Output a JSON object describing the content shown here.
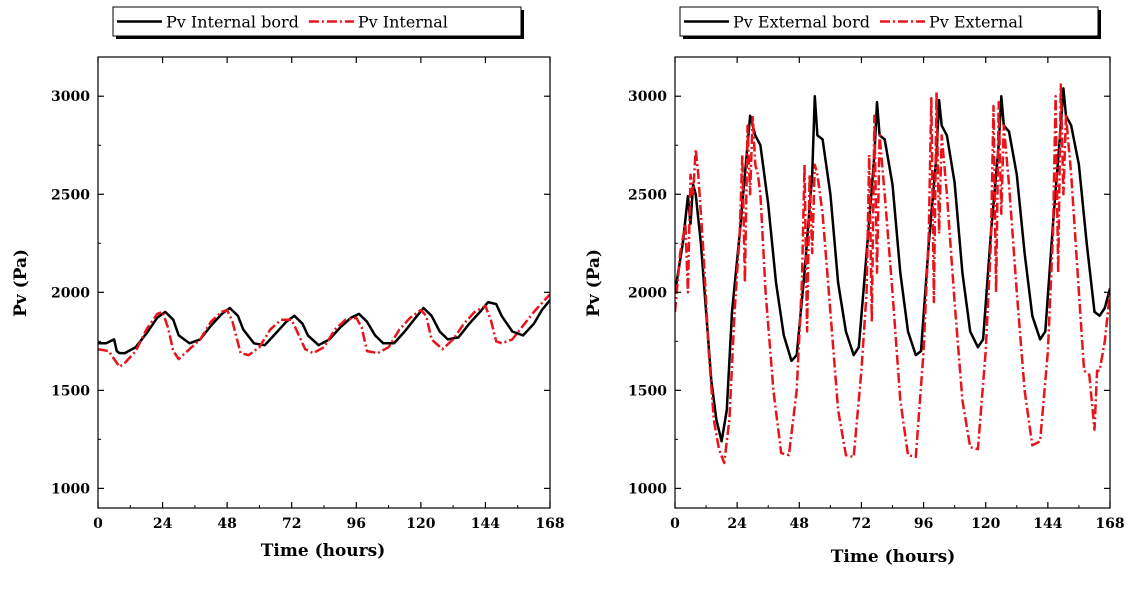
{
  "chart_data": [
    {
      "type": "line",
      "title": "",
      "xlabel": "Time (hours)",
      "ylabel": "Pv (Pa)",
      "xlim": [
        0,
        168
      ],
      "ylim": [
        900,
        3200
      ],
      "xticks": [
        "0",
        "24",
        "48",
        "72",
        "96",
        "120",
        "144",
        "168"
      ],
      "yticks": [
        "1000",
        "1500",
        "2000",
        "2500",
        "3000"
      ],
      "legend_position": "top",
      "series": [
        {
          "name": "Pv Internal bord",
          "color": "#000000",
          "style": "solid",
          "x": [
            0,
            3,
            6,
            7,
            8,
            10,
            14,
            18,
            22,
            25,
            28,
            30,
            34,
            38,
            42,
            46,
            49,
            52,
            54,
            58,
            62,
            66,
            70,
            73,
            76,
            78,
            82,
            86,
            90,
            94,
            97,
            100,
            103,
            106,
            110,
            114,
            118,
            121,
            124,
            127,
            130,
            134,
            138,
            142,
            145,
            148,
            150,
            154,
            158,
            162,
            165,
            168
          ],
          "y": [
            1740,
            1740,
            1760,
            1700,
            1690,
            1690,
            1720,
            1790,
            1870,
            1900,
            1860,
            1780,
            1740,
            1760,
            1830,
            1890,
            1920,
            1880,
            1810,
            1740,
            1730,
            1790,
            1850,
            1880,
            1840,
            1780,
            1730,
            1760,
            1820,
            1870,
            1890,
            1850,
            1780,
            1740,
            1740,
            1800,
            1870,
            1920,
            1880,
            1800,
            1760,
            1770,
            1840,
            1900,
            1950,
            1940,
            1880,
            1800,
            1780,
            1840,
            1910,
            1960
          ]
        },
        {
          "name": "Pv Internal",
          "color": "#e8141b",
          "style": "dashdot",
          "x": [
            0,
            4,
            6,
            8,
            10,
            14,
            18,
            22,
            24,
            26,
            28,
            30,
            34,
            38,
            42,
            46,
            48,
            50,
            53,
            56,
            60,
            64,
            68,
            72,
            74,
            77,
            80,
            84,
            88,
            92,
            96,
            98,
            100,
            104,
            108,
            112,
            116,
            120,
            122,
            124,
            128,
            132,
            136,
            140,
            144,
            146,
            148,
            150,
            154,
            158,
            162,
            166,
            168
          ],
          "y": [
            1710,
            1700,
            1660,
            1620,
            1640,
            1700,
            1810,
            1890,
            1900,
            1820,
            1700,
            1660,
            1710,
            1760,
            1850,
            1900,
            1910,
            1850,
            1690,
            1680,
            1720,
            1810,
            1860,
            1860,
            1800,
            1710,
            1690,
            1720,
            1810,
            1860,
            1870,
            1820,
            1700,
            1690,
            1720,
            1810,
            1870,
            1910,
            1880,
            1760,
            1710,
            1760,
            1840,
            1900,
            1930,
            1860,
            1750,
            1740,
            1760,
            1830,
            1900,
            1960,
            1990
          ]
        }
      ]
    },
    {
      "type": "line",
      "title": "",
      "xlabel": "Time (hours)",
      "ylabel": "Pv (Pa)",
      "xlim": [
        0,
        168
      ],
      "ylim": [
        900,
        3200
      ],
      "xticks": [
        "0",
        "24",
        "48",
        "72",
        "96",
        "120",
        "144",
        "168"
      ],
      "yticks": [
        "1000",
        "1500",
        "2000",
        "2500",
        "3000"
      ],
      "legend_position": "top",
      "series": [
        {
          "name": "Pv External bord",
          "color": "#000000",
          "style": "solid",
          "x": [
            0,
            3,
            5,
            6,
            7,
            8,
            10,
            12,
            14,
            16,
            18,
            20,
            22,
            25,
            27,
            29,
            30,
            31,
            33,
            36,
            39,
            42,
            45,
            47,
            50,
            53,
            54,
            55,
            57,
            60,
            63,
            66,
            69,
            71,
            74,
            77,
            78,
            79,
            81,
            84,
            87,
            90,
            93,
            95,
            98,
            101,
            102,
            103,
            105,
            108,
            111,
            114,
            117,
            119,
            122,
            125,
            126,
            127,
            129,
            132,
            135,
            138,
            141,
            143,
            146,
            149,
            150,
            151,
            153,
            156,
            159,
            162,
            164,
            166,
            168
          ],
          "y": [
            2000,
            2250,
            2490,
            2350,
            2550,
            2500,
            2250,
            1900,
            1550,
            1350,
            1240,
            1400,
            1900,
            2300,
            2600,
            2900,
            2850,
            2800,
            2750,
            2450,
            2050,
            1780,
            1650,
            1680,
            2100,
            2600,
            3000,
            2800,
            2780,
            2500,
            2050,
            1800,
            1680,
            1720,
            2200,
            2700,
            2970,
            2800,
            2780,
            2550,
            2100,
            1800,
            1680,
            1700,
            2250,
            2700,
            2980,
            2850,
            2800,
            2560,
            2100,
            1800,
            1720,
            1760,
            2300,
            2750,
            3000,
            2850,
            2820,
            2600,
            2200,
            1880,
            1760,
            1800,
            2350,
            2850,
            3040,
            2900,
            2850,
            2650,
            2250,
            1900,
            1880,
            1920,
            2020
          ]
        },
        {
          "name": "Pv External",
          "color": "#e8141b",
          "style": "dashdot",
          "x": [
            0,
            2,
            4,
            5,
            6,
            7,
            8,
            9,
            11,
            13,
            15,
            17,
            19,
            21,
            23,
            25,
            26,
            27,
            28,
            29,
            30,
            31,
            32,
            33,
            35,
            38,
            41,
            44,
            47,
            49,
            50,
            51,
            52,
            53,
            54,
            55,
            57,
            60,
            63,
            66,
            69,
            72,
            74,
            75,
            76,
            77,
            78,
            79,
            81,
            84,
            87,
            90,
            93,
            96,
            98,
            99,
            100,
            101,
            102,
            103,
            105,
            108,
            111,
            114,
            117,
            120,
            122,
            123,
            124,
            125,
            126,
            127,
            129,
            132,
            135,
            138,
            141,
            144,
            146,
            147,
            148,
            149,
            150,
            151,
            153,
            156,
            158,
            160,
            162,
            163,
            164,
            166,
            168
          ],
          "y": [
            1900,
            2200,
            2350,
            2000,
            2600,
            2500,
            2730,
            2600,
            2200,
            1700,
            1350,
            1200,
            1130,
            1350,
            1900,
            2300,
            2700,
            2050,
            2850,
            2500,
            2900,
            2650,
            2600,
            2500,
            2000,
            1500,
            1180,
            1170,
            1500,
            2050,
            2650,
            1800,
            2600,
            2200,
            2650,
            2600,
            2400,
            1900,
            1400,
            1170,
            1160,
            1600,
            2000,
            2700,
            1850,
            2900,
            2100,
            2800,
            2500,
            2000,
            1450,
            1170,
            1160,
            1700,
            2300,
            2990,
            1950,
            3020,
            2300,
            2800,
            2500,
            1950,
            1450,
            1210,
            1200,
            1700,
            2250,
            2950,
            2000,
            2970,
            2400,
            2850,
            2550,
            2000,
            1500,
            1220,
            1240,
            1700,
            2300,
            3000,
            2100,
            3060,
            2500,
            2900,
            2600,
            2000,
            1600,
            1580,
            1300,
            1600,
            1600,
            1750,
            2000
          ]
        }
      ]
    }
  ]
}
